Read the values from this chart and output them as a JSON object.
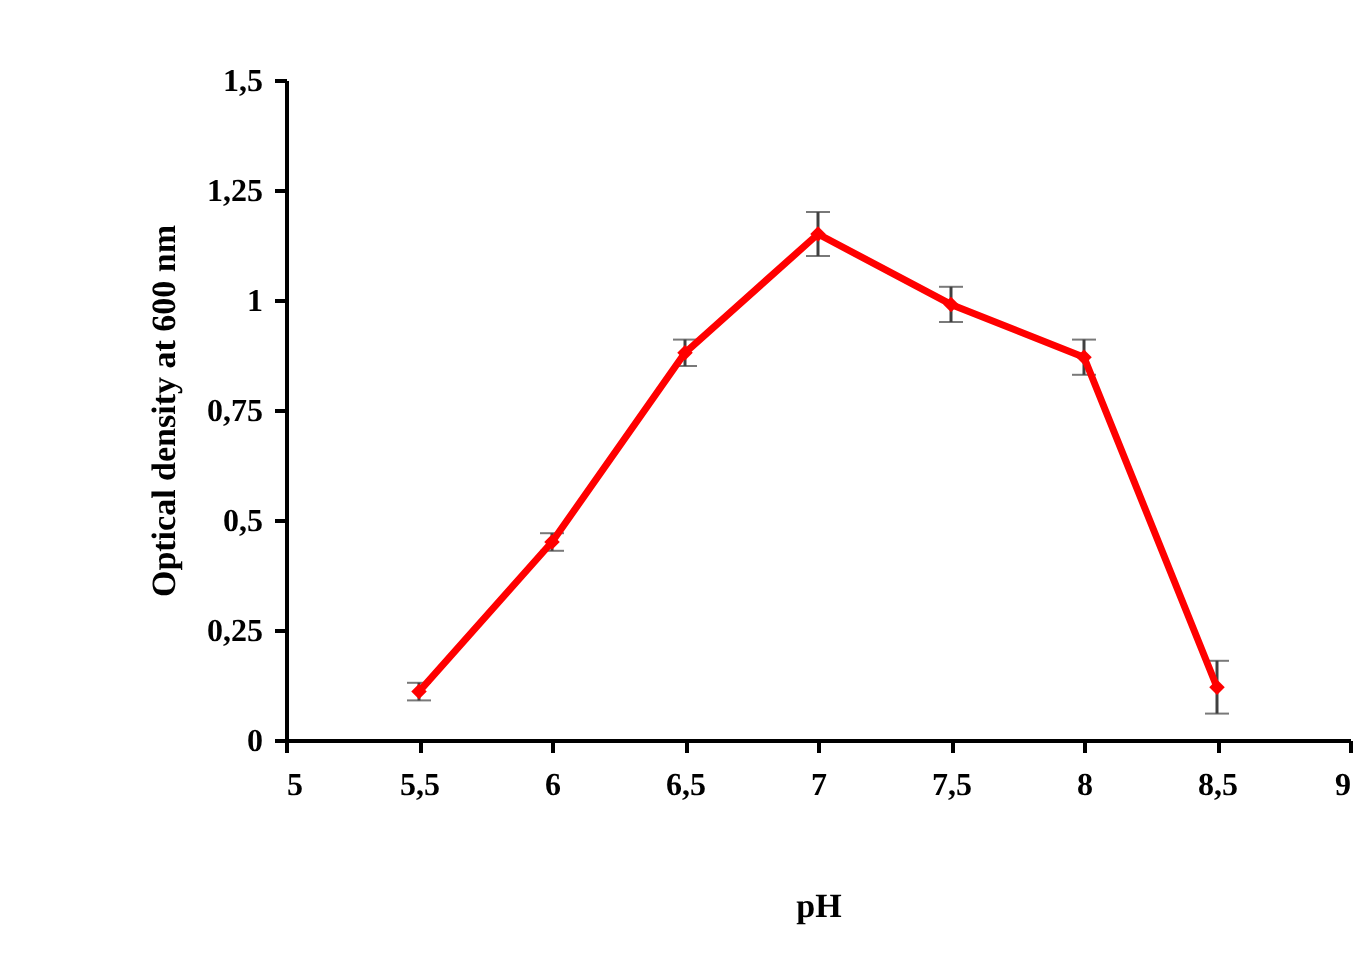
{
  "chart_data": {
    "type": "line",
    "xlabel": "pH",
    "ylabel": "Optical density at 600 nm",
    "x": [
      5.5,
      6,
      6.5,
      7,
      7.5,
      8,
      8.5
    ],
    "series": [
      {
        "color": "#ff0000",
        "values": [
          0.11,
          0.45,
          0.88,
          1.15,
          0.99,
          0.87,
          0.12
        ],
        "errors": [
          0.02,
          0.02,
          0.03,
          0.05,
          0.04,
          0.04,
          0.06
        ]
      }
    ],
    "xlim": [
      5,
      9
    ],
    "xticks": [
      5,
      {
        "value": 5.5,
        "label": "5,5"
      },
      6,
      {
        "value": 6.5,
        "label": "6,5"
      },
      7,
      {
        "value": 7.5,
        "label": "7,5"
      },
      8,
      {
        "value": 8.5,
        "label": "8,5"
      },
      9
    ],
    "ylim": [
      0,
      1.5
    ],
    "yticks": [
      0,
      {
        "value": 0.25,
        "label": "0,25"
      },
      {
        "value": 0.5,
        "label": "0,5"
      },
      {
        "value": 0.75,
        "label": "0,75"
      },
      1,
      {
        "value": 1.25,
        "label": "1,25"
      },
      {
        "value": 1.5,
        "label": "1,5"
      }
    ],
    "grid": false,
    "marker": "diamond",
    "line_style": "solid"
  }
}
